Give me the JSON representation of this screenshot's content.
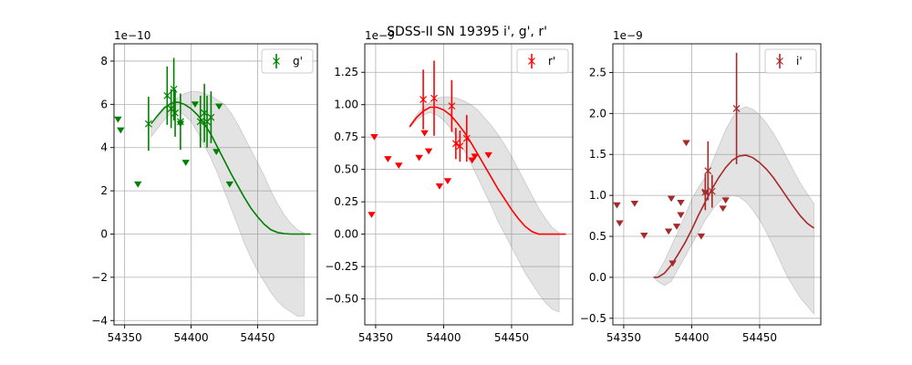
{
  "figure_title": "SDSS-II SN 19395  i', g', r'",
  "chart_data": [
    {
      "type": "scatter",
      "band": "g'",
      "color": "#008000",
      "offset_text": "1e−10",
      "xlim": [
        54342,
        54495
      ],
      "ylim": [
        -4.2,
        8.8
      ],
      "xticks": [
        54350,
        54400,
        54450
      ],
      "yticks": [
        -4,
        -2,
        0,
        2,
        4,
        6,
        8
      ],
      "ytick_labels": [
        "−4",
        "−2",
        "0",
        "2",
        "4",
        "6",
        "8"
      ],
      "legend": {
        "label": "g'",
        "position": "upper right"
      },
      "grid": true,
      "detections": [
        {
          "x": 54368,
          "y": 5.1,
          "err": 1.25
        },
        {
          "x": 54382,
          "y": 6.4,
          "err": 1.35
        },
        {
          "x": 54385,
          "y": 5.8,
          "err": 0.9
        },
        {
          "x": 54387,
          "y": 6.7,
          "err": 1.45
        },
        {
          "x": 54388,
          "y": 5.6,
          "err": 1.1
        },
        {
          "x": 54392,
          "y": 5.2,
          "err": 1.3
        },
        {
          "x": 54407,
          "y": 5.2,
          "err": 1.2
        },
        {
          "x": 54410,
          "y": 5.6,
          "err": 1.35
        },
        {
          "x": 54412,
          "y": 5.2,
          "err": 1.2
        },
        {
          "x": 54415,
          "y": 5.4,
          "err": 1.2
        }
      ],
      "upper_limits": [
        {
          "x": 54345,
          "y": 5.3
        },
        {
          "x": 54347,
          "y": 4.8
        },
        {
          "x": 54360,
          "y": 2.3
        },
        {
          "x": 54392,
          "y": 5.1
        },
        {
          "x": 54396,
          "y": 3.3
        },
        {
          "x": 54403,
          "y": 6.0
        },
        {
          "x": 54419,
          "y": 3.8
        },
        {
          "x": 54421,
          "y": 5.9
        },
        {
          "x": 54429,
          "y": 2.3
        }
      ],
      "model": {
        "x": [
          54370,
          54375,
          54380,
          54385,
          54390,
          54395,
          54400,
          54405,
          54410,
          54415,
          54420,
          54425,
          54430,
          54435,
          54440,
          54445,
          54450,
          54455,
          54460,
          54465,
          54470,
          54475,
          54480,
          54485,
          54490
        ],
        "y": [
          5.1,
          5.5,
          5.85,
          6.05,
          6.1,
          6.0,
          5.8,
          5.5,
          5.1,
          4.6,
          4.0,
          3.4,
          2.8,
          2.25,
          1.7,
          1.2,
          0.8,
          0.45,
          0.2,
          0.07,
          0.02,
          0.0,
          0.0,
          0.0,
          0.0
        ]
      },
      "band_region": {
        "x": [
          54370,
          54375,
          54380,
          54385,
          54390,
          54395,
          54400,
          54405,
          54410,
          54415,
          54420,
          54425,
          54430,
          54435,
          54440,
          54445,
          54450,
          54455,
          54460,
          54465,
          54470,
          54475,
          54480,
          54485
        ],
        "upper": [
          4.9,
          5.4,
          5.8,
          6.1,
          6.3,
          6.5,
          6.6,
          6.6,
          6.5,
          6.4,
          6.2,
          6.0,
          5.6,
          5.1,
          4.5,
          3.9,
          3.3,
          2.7,
          2.0,
          1.4,
          0.9,
          0.5,
          0.2,
          0.05
        ],
        "lower": [
          4.5,
          4.9,
          5.3,
          5.6,
          5.7,
          5.5,
          5.2,
          4.7,
          4.1,
          3.5,
          2.8,
          2.0,
          1.2,
          0.4,
          -0.4,
          -1.1,
          -1.7,
          -2.2,
          -2.7,
          -3.1,
          -3.4,
          -3.6,
          -3.8,
          -3.8
        ]
      }
    },
    {
      "type": "scatter",
      "band": "r'",
      "color": "#ff0000",
      "offset_text": "1e−9",
      "xlim": [
        54342,
        54495
      ],
      "ylim": [
        -0.7,
        1.47
      ],
      "xticks": [
        54350,
        54400,
        54450
      ],
      "yticks": [
        -0.5,
        -0.25,
        0.0,
        0.25,
        0.5,
        0.75,
        1.0,
        1.25
      ],
      "ytick_labels": [
        "−0.50",
        "−0.25",
        "0.00",
        "0.25",
        "0.50",
        "0.75",
        "1.00",
        "1.25"
      ],
      "legend": {
        "label": "r'",
        "position": "upper right"
      },
      "grid": true,
      "detections": [
        {
          "x": 54385,
          "y": 1.04,
          "err": 0.23
        },
        {
          "x": 54393,
          "y": 1.05,
          "err": 0.29
        },
        {
          "x": 54406,
          "y": 0.99,
          "err": 0.2
        },
        {
          "x": 54409,
          "y": 0.7,
          "err": 0.12
        },
        {
          "x": 54412,
          "y": 0.68,
          "err": 0.12
        },
        {
          "x": 54417,
          "y": 0.74,
          "err": 0.18
        }
      ],
      "upper_limits": [
        {
          "x": 54347,
          "y": 0.15
        },
        {
          "x": 54349,
          "y": 0.75
        },
        {
          "x": 54359,
          "y": 0.58
        },
        {
          "x": 54367,
          "y": 0.53
        },
        {
          "x": 54382,
          "y": 0.59
        },
        {
          "x": 54386,
          "y": 0.78
        },
        {
          "x": 54389,
          "y": 0.64
        },
        {
          "x": 54397,
          "y": 0.37
        },
        {
          "x": 54403,
          "y": 0.41
        },
        {
          "x": 54421,
          "y": 0.57
        },
        {
          "x": 54423,
          "y": 0.6
        },
        {
          "x": 54433,
          "y": 0.61
        }
      ],
      "model": {
        "x": [
          54375,
          54380,
          54385,
          54390,
          54395,
          54400,
          54405,
          54410,
          54415,
          54420,
          54425,
          54430,
          54435,
          54440,
          54445,
          54450,
          54455,
          54460,
          54465,
          54470,
          54475,
          54480,
          54485,
          54490
        ],
        "y": [
          0.83,
          0.9,
          0.95,
          0.98,
          0.98,
          0.96,
          0.92,
          0.86,
          0.79,
          0.71,
          0.62,
          0.53,
          0.44,
          0.35,
          0.27,
          0.19,
          0.12,
          0.06,
          0.02,
          0.0,
          0.0,
          0.0,
          0.0,
          0.0
        ]
      },
      "band_region": {
        "x": [
          54375,
          54380,
          54385,
          54390,
          54395,
          54400,
          54405,
          54410,
          54415,
          54420,
          54425,
          54430,
          54435,
          54440,
          54445,
          54450,
          54455,
          54460,
          54465,
          54470,
          54475,
          54480,
          54485
        ],
        "upper": [
          0.84,
          0.92,
          0.98,
          1.02,
          1.05,
          1.06,
          1.06,
          1.05,
          1.03,
          1.0,
          0.96,
          0.9,
          0.84,
          0.77,
          0.69,
          0.6,
          0.5,
          0.4,
          0.3,
          0.2,
          0.12,
          0.05,
          0.01
        ],
        "lower": [
          0.82,
          0.88,
          0.92,
          0.94,
          0.92,
          0.88,
          0.82,
          0.74,
          0.65,
          0.55,
          0.44,
          0.33,
          0.22,
          0.1,
          0.0,
          -0.1,
          -0.2,
          -0.3,
          -0.38,
          -0.46,
          -0.53,
          -0.58,
          -0.6
        ]
      }
    },
    {
      "type": "scatter",
      "band": "i'",
      "color": "#a52a2a",
      "offset_text": "1e−9",
      "xlim": [
        54342,
        54495
      ],
      "ylim": [
        -0.58,
        2.85
      ],
      "xticks": [
        54350,
        54400,
        54450
      ],
      "yticks": [
        -0.5,
        0.0,
        0.5,
        1.0,
        1.5,
        2.0,
        2.5
      ],
      "ytick_labels": [
        "−0.5",
        "0.0",
        "0.5",
        "1.0",
        "1.5",
        "2.0",
        "2.5"
      ],
      "legend": {
        "label": "i'",
        "position": "upper right"
      },
      "grid": true,
      "detections": [
        {
          "x": 54410,
          "y": 1.04,
          "err": 0.22
        },
        {
          "x": 54412,
          "y": 1.3,
          "err": 0.36
        },
        {
          "x": 54415,
          "y": 1.05,
          "err": 0.2
        },
        {
          "x": 54433,
          "y": 2.06,
          "err": 0.68
        }
      ],
      "upper_limits": [
        {
          "x": 54345,
          "y": 0.88
        },
        {
          "x": 54347,
          "y": 0.66
        },
        {
          "x": 54358,
          "y": 0.9
        },
        {
          "x": 54365,
          "y": 0.51
        },
        {
          "x": 54383,
          "y": 0.56
        },
        {
          "x": 54385,
          "y": 0.96
        },
        {
          "x": 54386,
          "y": 0.17
        },
        {
          "x": 54389,
          "y": 0.62
        },
        {
          "x": 54392,
          "y": 0.76
        },
        {
          "x": 54392,
          "y": 0.91
        },
        {
          "x": 54396,
          "y": 1.64
        },
        {
          "x": 54407,
          "y": 0.5
        },
        {
          "x": 54410,
          "y": 1.03
        },
        {
          "x": 54423,
          "y": 0.84
        },
        {
          "x": 54425,
          "y": 0.94
        }
      ],
      "model": {
        "x": [
          54372,
          54375,
          54380,
          54385,
          54390,
          54395,
          54400,
          54405,
          54410,
          54415,
          54420,
          54425,
          54430,
          54435,
          54440,
          54445,
          54450,
          54455,
          54460,
          54465,
          54470,
          54475,
          54480,
          54485,
          54490
        ],
        "y": [
          0.0,
          0.0,
          0.05,
          0.15,
          0.28,
          0.42,
          0.58,
          0.76,
          0.92,
          1.08,
          1.22,
          1.34,
          1.43,
          1.48,
          1.49,
          1.46,
          1.4,
          1.32,
          1.22,
          1.1,
          0.98,
          0.86,
          0.75,
          0.66,
          0.6
        ]
      },
      "band_region": {
        "x": [
          54372,
          54375,
          54380,
          54385,
          54390,
          54395,
          54400,
          54405,
          54410,
          54415,
          54420,
          54425,
          54430,
          54435,
          54440,
          54445,
          54450,
          54455,
          54460,
          54465,
          54470,
          54475,
          54480,
          54485,
          54490
        ],
        "upper": [
          0.0,
          0.05,
          0.2,
          0.38,
          0.56,
          0.75,
          0.95,
          1.1,
          1.22,
          1.4,
          1.6,
          1.8,
          1.95,
          2.05,
          2.08,
          2.05,
          1.98,
          1.88,
          1.76,
          1.62,
          1.46,
          1.3,
          1.15,
          1.02,
          0.9
        ],
        "lower": [
          0.0,
          -0.05,
          -0.1,
          -0.05,
          0.1,
          0.25,
          0.4,
          0.55,
          0.7,
          0.82,
          0.92,
          0.98,
          1.0,
          0.98,
          0.92,
          0.82,
          0.7,
          0.55,
          0.38,
          0.2,
          0.02,
          -0.12,
          -0.25,
          -0.35,
          -0.45
        ]
      }
    }
  ]
}
